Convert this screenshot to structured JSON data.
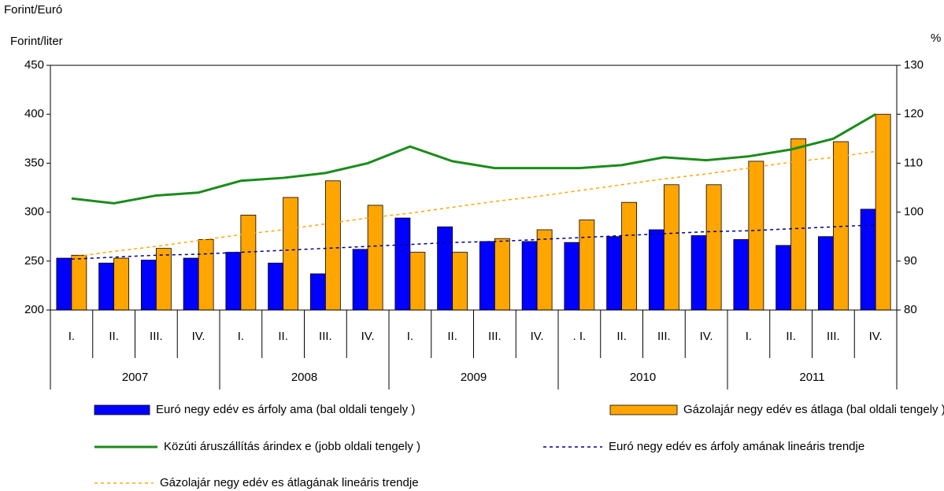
{
  "chart_data": {
    "type": "bar",
    "y_axis_label_top": "Forint/Euró",
    "y_axis_label": "Forint/liter",
    "y2_axis_label": "%",
    "categories": [
      "I.",
      "II.",
      "III.",
      "IV.",
      "I.",
      "II.",
      "III.",
      "IV.",
      "I.",
      "II.",
      "III.",
      "IV.",
      ". I.",
      "II.",
      "III.",
      "IV.",
      "I.",
      "II.",
      "III.",
      "IV."
    ],
    "years": [
      "2007",
      "2008",
      "2009",
      "2010",
      "2011"
    ],
    "ylim": [
      200,
      450
    ],
    "yticks": [
      200,
      250,
      300,
      350,
      400,
      450
    ],
    "y2lim": [
      80,
      130
    ],
    "y2ticks": [
      80,
      90,
      100,
      110,
      120,
      130
    ],
    "series": [
      {
        "name": "Euró negy edév es árfoly ama (bal oldali tengely )",
        "type": "bar",
        "color": "#0000ff",
        "values": [
          253,
          248,
          251,
          253,
          259,
          248,
          237,
          262,
          294,
          285,
          270,
          270,
          269,
          275,
          282,
          276,
          272,
          266,
          275,
          303
        ]
      },
      {
        "name": "Gázolajár negy edév es átlaga (bal oldali tengely )",
        "type": "bar",
        "color": "#ffa500",
        "values": [
          256,
          253,
          263,
          272,
          297,
          315,
          332,
          307,
          259,
          259,
          273,
          282,
          292,
          310,
          328,
          328,
          352,
          375,
          372,
          400
        ]
      },
      {
        "name": "Közúti áruszállítás árindex e (jobb oldali tengely )",
        "type": "line",
        "axis": "y2",
        "color": "#1a8c1a",
        "values": [
          102.8,
          101.8,
          103.4,
          104,
          106.4,
          107,
          108,
          110,
          113.4,
          110.4,
          109,
          109,
          109,
          109.6,
          111.2,
          110.6,
          111.4,
          112.8,
          115,
          120
        ]
      },
      {
        "name": "Euró negy edév es árfoly amának lineáris trendje",
        "type": "dotted",
        "color": "#00008b",
        "values": [
          252,
          254,
          256,
          257,
          259,
          261,
          263,
          265,
          267,
          269,
          270,
          272,
          274,
          276,
          278,
          280,
          281,
          283,
          285,
          287
        ]
      },
      {
        "name": "Gázolajár negy edév es átlagának lineáris trendje",
        "type": "dotted",
        "color": "#ffa500",
        "values": [
          254,
          260,
          265,
          271,
          277,
          282,
          288,
          294,
          299,
          305,
          311,
          316,
          322,
          328,
          334,
          339,
          345,
          351,
          356,
          362
        ]
      }
    ]
  }
}
